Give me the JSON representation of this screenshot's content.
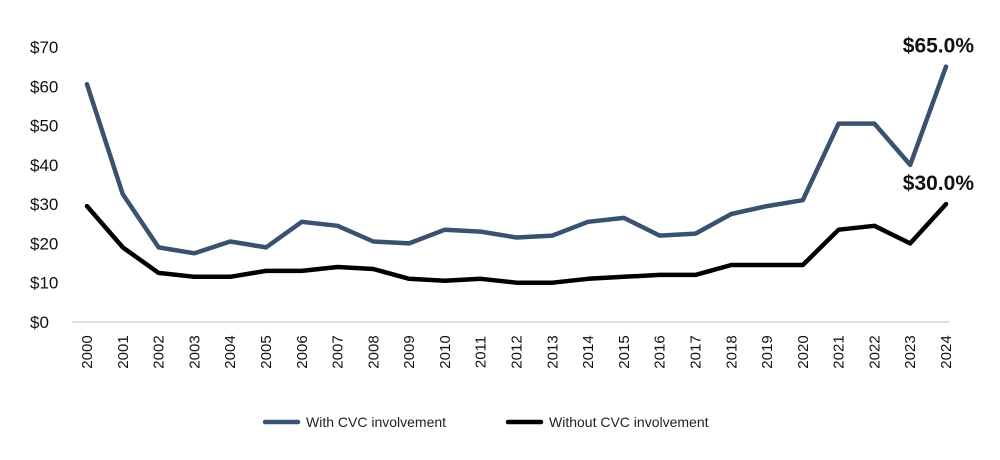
{
  "chart_data": {
    "type": "line",
    "title": "",
    "xlabel": "",
    "ylabel": "",
    "ylim": [
      0,
      70
    ],
    "y_ticks": [
      0,
      10,
      20,
      30,
      40,
      50,
      60,
      70
    ],
    "y_tick_labels": [
      "$0",
      "$10",
      "$20",
      "$30",
      "$40",
      "$50",
      "$60",
      "$70"
    ],
    "categories": [
      "2000",
      "2001",
      "2002",
      "2003",
      "2004",
      "2005",
      "2006",
      "2007",
      "2008",
      "2009",
      "2010",
      "2011",
      "2012",
      "2013",
      "2014",
      "2015",
      "2016",
      "2017",
      "2018",
      "2019",
      "2020",
      "2021",
      "2022",
      "2023",
      "2024"
    ],
    "grid": false,
    "legend_position": "bottom",
    "series": [
      {
        "name": "With CVC involvement",
        "color": "#3b5170",
        "values": [
          60.5,
          32.5,
          19,
          17.5,
          20.5,
          19,
          25.5,
          24.5,
          20.5,
          20,
          23.5,
          23,
          21.5,
          22,
          25.5,
          26.5,
          22,
          22.5,
          27.5,
          29.5,
          31,
          50.5,
          50.5,
          40,
          65
        ],
        "end_label": "$65.0%"
      },
      {
        "name": "Without CVC involvement",
        "color": "#000000",
        "values": [
          29.5,
          19,
          12.5,
          11.5,
          11.5,
          13,
          13,
          14,
          13.5,
          11,
          10.5,
          11,
          10,
          10,
          11,
          11.5,
          12,
          12,
          14.5,
          14.5,
          14.5,
          23.5,
          24.5,
          20,
          30
        ],
        "end_label": "$30.0%"
      }
    ]
  }
}
